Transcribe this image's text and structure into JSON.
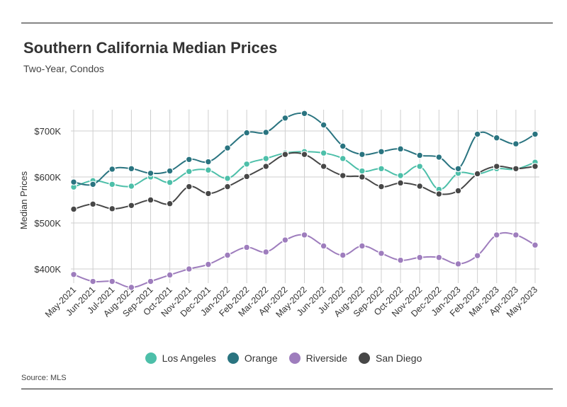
{
  "header": {
    "title": "Southern California Median Prices",
    "subtitle": "Two-Year, Condos"
  },
  "footer": {
    "source": "Source:  MLS"
  },
  "chart_data": {
    "type": "line",
    "title": "Southern California Median Prices",
    "subtitle": "Two-Year, Condos",
    "xlabel": "",
    "ylabel": "Median Prices",
    "ylim": [
      350000,
      750000
    ],
    "yticks": [
      400000,
      500000,
      600000,
      700000
    ],
    "ytick_labels": [
      "$400K",
      "$500K",
      "$600K",
      "$700K"
    ],
    "grid": true,
    "legend_position": "bottom",
    "categories": [
      "May-2021",
      "Jun-2021",
      "Jul-2021",
      "Aug-2021",
      "Sep-2021",
      "Oct-2021",
      "Nov-2021",
      "Dec-2021",
      "Jan-2022",
      "Feb-2022",
      "Mar-2022",
      "Apr-2022",
      "May-2022",
      "Jun-2022",
      "Jul-2022",
      "Aug-2022",
      "Sep-2022",
      "Oct-2022",
      "Nov-2022",
      "Dec-2022",
      "Jan-2023",
      "Feb-2023",
      "Mar-2023",
      "Apr-2023",
      "May-2023"
    ],
    "series": [
      {
        "name": "Los Angeles",
        "color": "#4dbfa9",
        "values": [
          578000,
          592000,
          584000,
          580000,
          600000,
          588000,
          612000,
          615000,
          597000,
          628000,
          640000,
          652000,
          655000,
          652000,
          640000,
          613000,
          618000,
          603000,
          623000,
          573000,
          608000,
          606000,
          618000,
          617000,
          632000
        ]
      },
      {
        "name": "Orange",
        "color": "#2a7480",
        "values": [
          589000,
          584000,
          617000,
          618000,
          608000,
          613000,
          638000,
          633000,
          663000,
          696000,
          697000,
          728000,
          738000,
          713000,
          667000,
          649000,
          655000,
          661000,
          647000,
          643000,
          618000,
          693000,
          685000,
          672000,
          693000
        ]
      },
      {
        "name": "Riverside",
        "color": "#9e7dbd",
        "values": [
          388000,
          373000,
          373000,
          360000,
          373000,
          387000,
          400000,
          410000,
          430000,
          447000,
          437000,
          463000,
          474000,
          450000,
          430000,
          450000,
          434000,
          419000,
          425000,
          425000,
          411000,
          429000,
          474000,
          474000,
          452000
        ]
      },
      {
        "name": "San Diego",
        "color": "#474747",
        "values": [
          530000,
          541000,
          531000,
          538000,
          550000,
          542000,
          579000,
          564000,
          579000,
          601000,
          623000,
          649000,
          649000,
          623000,
          603000,
          600000,
          579000,
          587000,
          580000,
          563000,
          570000,
          607000,
          623000,
          618000,
          623000
        ]
      }
    ]
  }
}
